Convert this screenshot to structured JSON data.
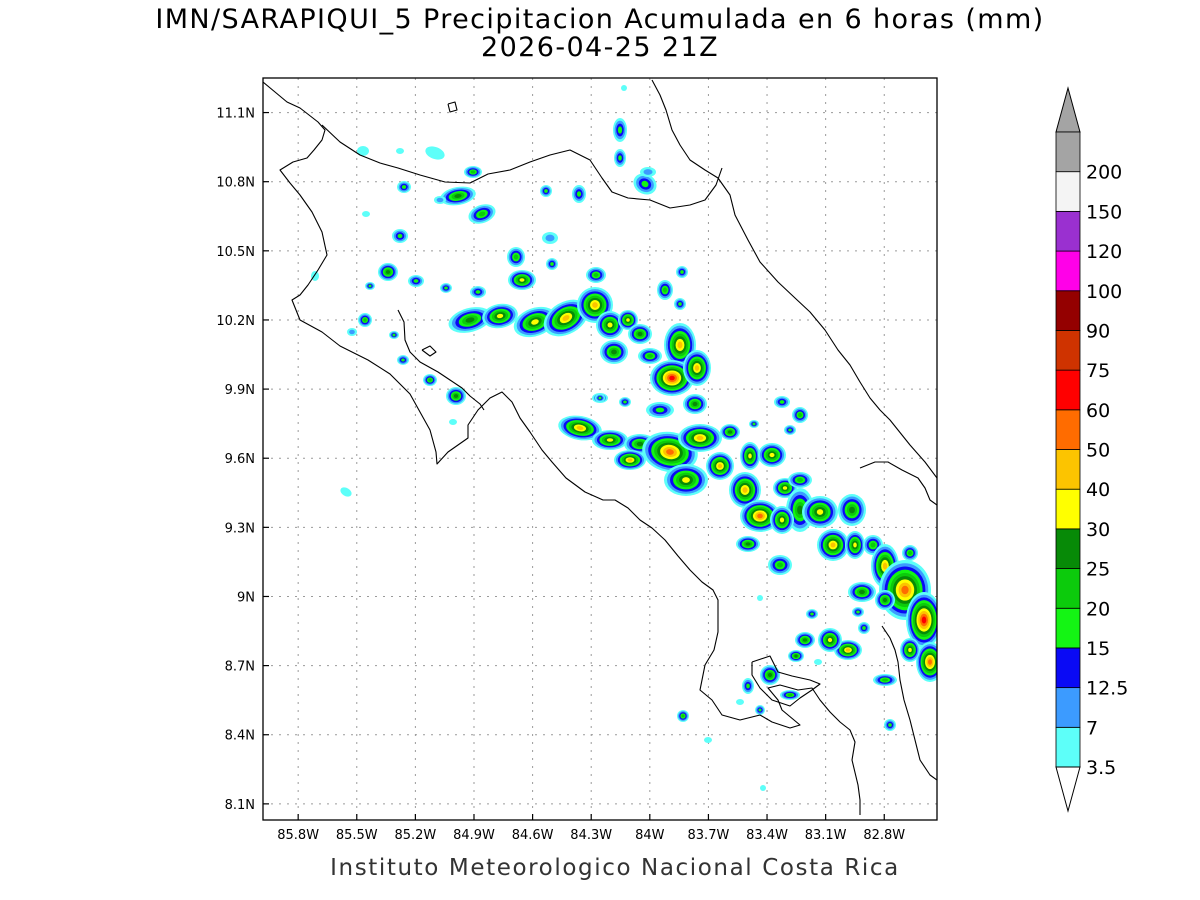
{
  "title": "IMN/SARAPIQUI_5 Precipitacion Acumulada en 6 horas (mm)",
  "subtitle": "2026-04-25 21Z",
  "footer": "Instituto Meteorologico Nacional Costa Rica",
  "map": {
    "lon_range": [
      -85.98,
      -82.53
    ],
    "lat_range": [
      8.03,
      11.25
    ],
    "lat_ticks": [
      {
        "value": 11.1,
        "label": "11.1N"
      },
      {
        "value": 10.8,
        "label": "10.8N"
      },
      {
        "value": 10.5,
        "label": "10.5N"
      },
      {
        "value": 10.2,
        "label": "10.2N"
      },
      {
        "value": 9.9,
        "label": "9.9N"
      },
      {
        "value": 9.6,
        "label": "9.6N"
      },
      {
        "value": 9.3,
        "label": "9.3N"
      },
      {
        "value": 9.0,
        "label": "9N"
      },
      {
        "value": 8.7,
        "label": "8.7N"
      },
      {
        "value": 8.4,
        "label": "8.4N"
      },
      {
        "value": 8.1,
        "label": "8.1N"
      }
    ],
    "lon_ticks": [
      {
        "value": -85.8,
        "label": "85.8W"
      },
      {
        "value": -85.5,
        "label": "85.5W"
      },
      {
        "value": -85.2,
        "label": "85.2W"
      },
      {
        "value": -84.9,
        "label": "84.9W"
      },
      {
        "value": -84.6,
        "label": "84.6W"
      },
      {
        "value": -84.3,
        "label": "84.3W"
      },
      {
        "value": -84.0,
        "label": "84W"
      },
      {
        "value": -83.7,
        "label": "83.7W"
      },
      {
        "value": -83.4,
        "label": "83.4W"
      },
      {
        "value": -83.1,
        "label": "83.1W"
      },
      {
        "value": -82.8,
        "label": "82.8W"
      }
    ],
    "grid": true
  },
  "colorbar": {
    "levels": [
      {
        "label": "3.5",
        "color": "#5dfff9"
      },
      {
        "label": "7",
        "color": "#3c9bff"
      },
      {
        "label": "12.5",
        "color": "#0a0af5"
      },
      {
        "label": "15",
        "color": "#14f514"
      },
      {
        "label": "20",
        "color": "#0ccb0c"
      },
      {
        "label": "25",
        "color": "#078a07"
      },
      {
        "label": "30",
        "color": "#ffff00"
      },
      {
        "label": "40",
        "color": "#fcc400"
      },
      {
        "label": "50",
        "color": "#ff6c00"
      },
      {
        "label": "60",
        "color": "#ff0000"
      },
      {
        "label": "75",
        "color": "#cf3300"
      },
      {
        "label": "90",
        "color": "#940000"
      },
      {
        "label": "100",
        "color": "#ff00e8"
      },
      {
        "label": "120",
        "color": "#9a30d0"
      },
      {
        "label": "150",
        "color": "#f4f4f4"
      },
      {
        "label": "200",
        "color": "#a4a4a4"
      }
    ],
    "under_color": "#ffffff",
    "over_color": "#a4a4a4"
  }
}
